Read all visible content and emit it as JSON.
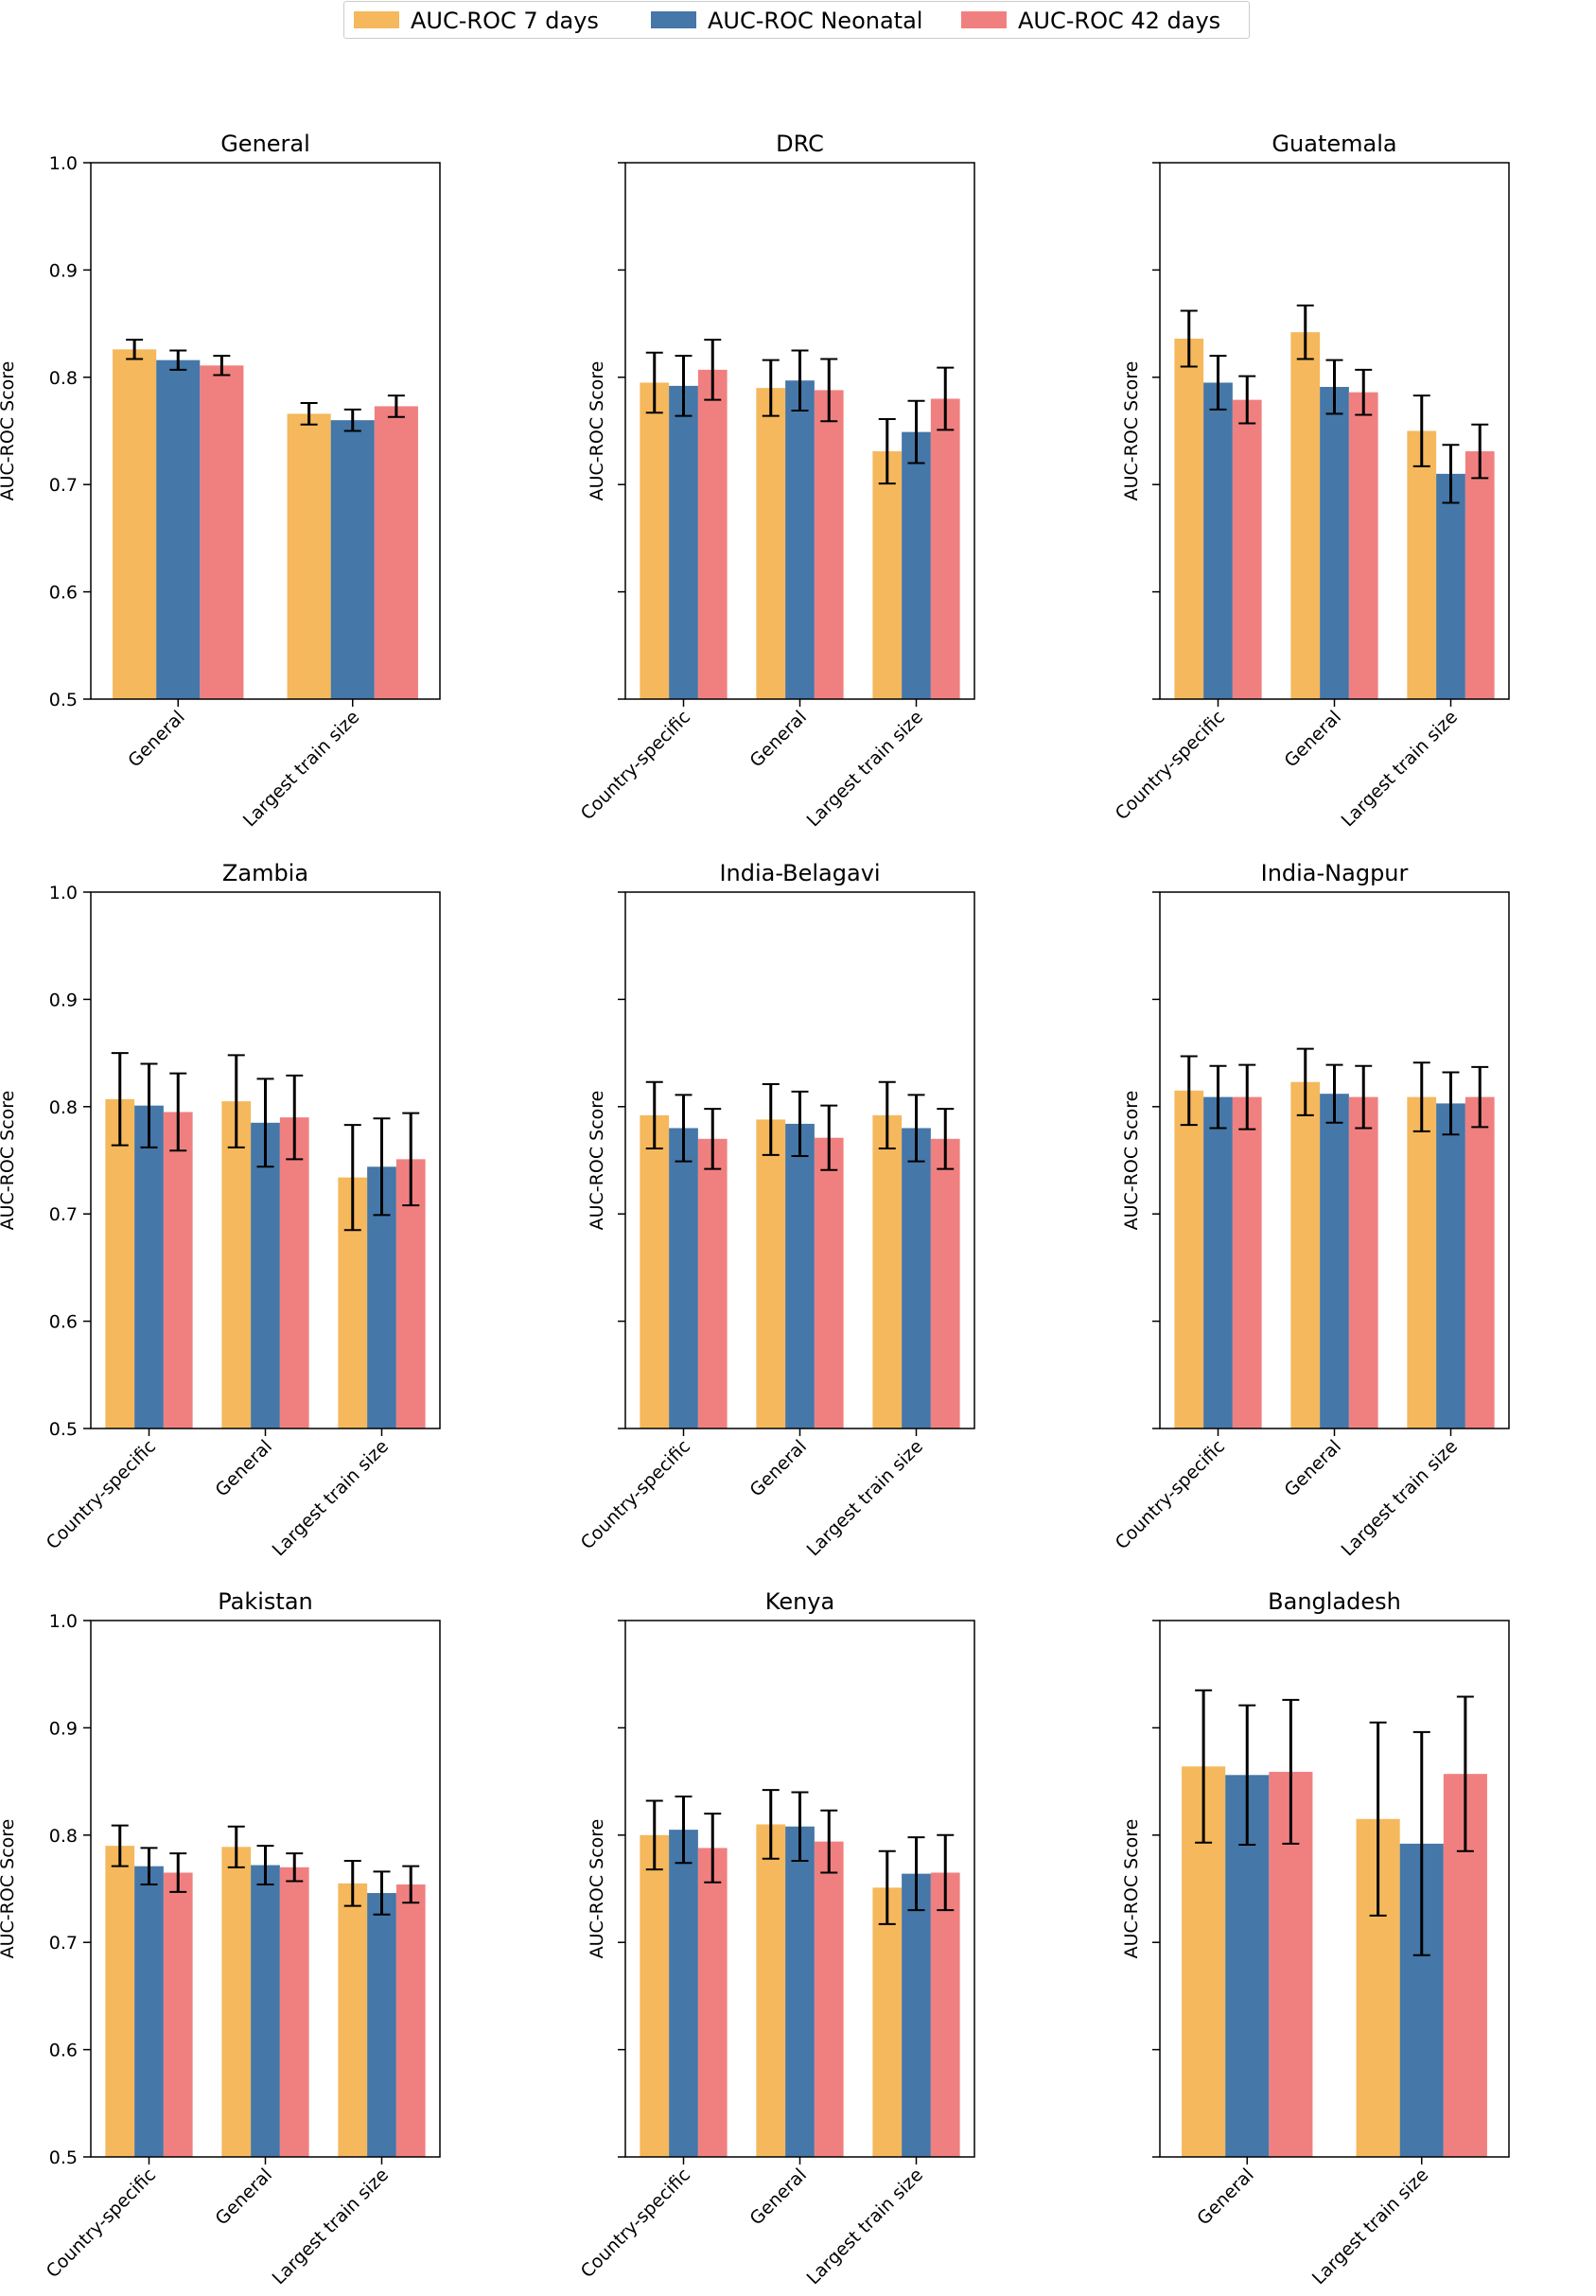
{
  "legend": {
    "items": [
      {
        "label": "AUC-ROC 7 days",
        "color": "#F5B85C"
      },
      {
        "label": "AUC-ROC Neonatal",
        "color": "#4577A8"
      },
      {
        "label": "AUC-ROC 42 days",
        "color": "#F08080"
      }
    ]
  },
  "chart_data": [
    {
      "type": "bar",
      "title": "General",
      "ylabel": "AUC-ROC Score",
      "ylim": [
        0.5,
        1.0
      ],
      "yticks": [
        "0.5",
        "0.6",
        "0.7",
        "0.8",
        "0.9",
        "1.0"
      ],
      "categories": [
        "General",
        "Largest train size"
      ],
      "series": [
        {
          "name": "AUC-ROC 7 days",
          "values": [
            0.826,
            0.766
          ],
          "errors": [
            0.009,
            0.01
          ]
        },
        {
          "name": "AUC-ROC Neonatal",
          "values": [
            0.816,
            0.76
          ],
          "errors": [
            0.009,
            0.01
          ]
        },
        {
          "name": "AUC-ROC 42 days",
          "values": [
            0.811,
            0.773
          ],
          "errors": [
            0.009,
            0.01
          ]
        }
      ]
    },
    {
      "type": "bar",
      "title": "DRC",
      "ylabel": "AUC-ROC Score",
      "ylim": [
        0.5,
        1.0
      ],
      "yticks": [],
      "categories": [
        "Country-specific",
        "General",
        "Largest train size"
      ],
      "series": [
        {
          "name": "AUC-ROC 7 days",
          "values": [
            0.795,
            0.79,
            0.731
          ],
          "errors": [
            0.028,
            0.026,
            0.03
          ]
        },
        {
          "name": "AUC-ROC Neonatal",
          "values": [
            0.792,
            0.797,
            0.749
          ],
          "errors": [
            0.028,
            0.028,
            0.029
          ]
        },
        {
          "name": "AUC-ROC 42 days",
          "values": [
            0.807,
            0.788,
            0.78
          ],
          "errors": [
            0.028,
            0.029,
            0.029
          ]
        }
      ]
    },
    {
      "type": "bar",
      "title": "Guatemala",
      "ylabel": "AUC-ROC Score",
      "ylim": [
        0.5,
        1.0
      ],
      "yticks": [],
      "categories": [
        "Country-specific",
        "General",
        "Largest train size"
      ],
      "series": [
        {
          "name": "AUC-ROC 7 days",
          "values": [
            0.836,
            0.842,
            0.75
          ],
          "errors": [
            0.026,
            0.025,
            0.033
          ]
        },
        {
          "name": "AUC-ROC Neonatal",
          "values": [
            0.795,
            0.791,
            0.71
          ],
          "errors": [
            0.025,
            0.025,
            0.027
          ]
        },
        {
          "name": "AUC-ROC 42 days",
          "values": [
            0.779,
            0.786,
            0.731
          ],
          "errors": [
            0.022,
            0.021,
            0.025
          ]
        }
      ]
    },
    {
      "type": "bar",
      "title": "Zambia",
      "ylabel": "AUC-ROC Score",
      "ylim": [
        0.5,
        1.0
      ],
      "yticks": [
        "0.5",
        "0.6",
        "0.7",
        "0.8",
        "0.9",
        "1.0"
      ],
      "categories": [
        "Country-specific",
        "General",
        "Largest train size"
      ],
      "series": [
        {
          "name": "AUC-ROC 7 days",
          "values": [
            0.807,
            0.805,
            0.734
          ],
          "errors": [
            0.043,
            0.043,
            0.049
          ]
        },
        {
          "name": "AUC-ROC Neonatal",
          "values": [
            0.801,
            0.785,
            0.744
          ],
          "errors": [
            0.039,
            0.041,
            0.045
          ]
        },
        {
          "name": "AUC-ROC 42 days",
          "values": [
            0.795,
            0.79,
            0.751
          ],
          "errors": [
            0.036,
            0.039,
            0.043
          ]
        }
      ]
    },
    {
      "type": "bar",
      "title": "India-Belagavi",
      "ylabel": "AUC-ROC Score",
      "ylim": [
        0.5,
        1.0
      ],
      "yticks": [],
      "categories": [
        "Country-specific",
        "General",
        "Largest train size"
      ],
      "series": [
        {
          "name": "AUC-ROC 7 days",
          "values": [
            0.792,
            0.788,
            0.792
          ],
          "errors": [
            0.031,
            0.033,
            0.031
          ]
        },
        {
          "name": "AUC-ROC Neonatal",
          "values": [
            0.78,
            0.784,
            0.78
          ],
          "errors": [
            0.031,
            0.03,
            0.031
          ]
        },
        {
          "name": "AUC-ROC 42 days",
          "values": [
            0.77,
            0.771,
            0.77
          ],
          "errors": [
            0.028,
            0.03,
            0.028
          ]
        }
      ]
    },
    {
      "type": "bar",
      "title": "India-Nagpur",
      "ylabel": "AUC-ROC Score",
      "ylim": [
        0.5,
        1.0
      ],
      "yticks": [],
      "categories": [
        "Country-specific",
        "General",
        "Largest train size"
      ],
      "series": [
        {
          "name": "AUC-ROC 7 days",
          "values": [
            0.815,
            0.823,
            0.809
          ],
          "errors": [
            0.032,
            0.031,
            0.032
          ]
        },
        {
          "name": "AUC-ROC Neonatal",
          "values": [
            0.809,
            0.812,
            0.803
          ],
          "errors": [
            0.029,
            0.027,
            0.029
          ]
        },
        {
          "name": "AUC-ROC 42 days",
          "values": [
            0.809,
            0.809,
            0.809
          ],
          "errors": [
            0.03,
            0.029,
            0.028
          ]
        }
      ]
    },
    {
      "type": "bar",
      "title": "Pakistan",
      "ylabel": "AUC-ROC Score",
      "ylim": [
        0.5,
        1.0
      ],
      "yticks": [
        "0.5",
        "0.6",
        "0.7",
        "0.8",
        "0.9",
        "1.0"
      ],
      "categories": [
        "Country-specific",
        "General",
        "Largest train size"
      ],
      "series": [
        {
          "name": "AUC-ROC 7 days",
          "values": [
            0.79,
            0.789,
            0.755
          ],
          "errors": [
            0.019,
            0.019,
            0.021
          ]
        },
        {
          "name": "AUC-ROC Neonatal",
          "values": [
            0.771,
            0.772,
            0.746
          ],
          "errors": [
            0.017,
            0.018,
            0.02
          ]
        },
        {
          "name": "AUC-ROC 42 days",
          "values": [
            0.765,
            0.77,
            0.754
          ],
          "errors": [
            0.018,
            0.013,
            0.017
          ]
        }
      ]
    },
    {
      "type": "bar",
      "title": "Kenya",
      "ylabel": "AUC-ROC Score",
      "ylim": [
        0.5,
        1.0
      ],
      "yticks": [],
      "categories": [
        "Country-specific",
        "General",
        "Largest train size"
      ],
      "series": [
        {
          "name": "AUC-ROC 7 days",
          "values": [
            0.8,
            0.81,
            0.751
          ],
          "errors": [
            0.032,
            0.032,
            0.034
          ]
        },
        {
          "name": "AUC-ROC Neonatal",
          "values": [
            0.805,
            0.808,
            0.764
          ],
          "errors": [
            0.031,
            0.032,
            0.034
          ]
        },
        {
          "name": "AUC-ROC 42 days",
          "values": [
            0.788,
            0.794,
            0.765
          ],
          "errors": [
            0.032,
            0.029,
            0.035
          ]
        }
      ]
    },
    {
      "type": "bar",
      "title": "Bangladesh",
      "ylabel": "AUC-ROC Score",
      "ylim": [
        0.5,
        1.0
      ],
      "yticks": [],
      "categories": [
        "General",
        "Largest train size"
      ],
      "series": [
        {
          "name": "AUC-ROC 7 days",
          "values": [
            0.864,
            0.815
          ],
          "errors": [
            0.071,
            0.09
          ]
        },
        {
          "name": "AUC-ROC Neonatal",
          "values": [
            0.856,
            0.792
          ],
          "errors": [
            0.065,
            0.104
          ]
        },
        {
          "name": "AUC-ROC 42 days",
          "values": [
            0.859,
            0.857
          ],
          "errors": [
            0.067,
            0.072
          ]
        }
      ]
    }
  ]
}
